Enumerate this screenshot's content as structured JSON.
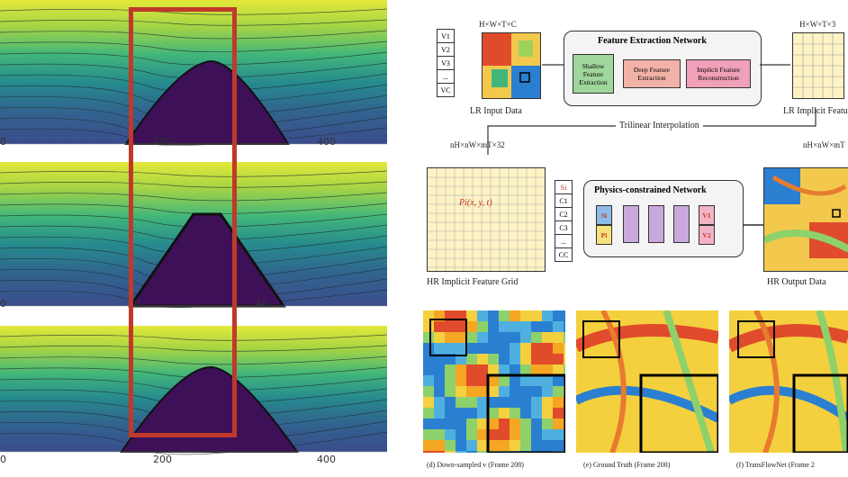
{
  "left_figure": {
    "panels": [
      {
        "ticks": [
          "0",
          "200",
          "400"
        ]
      },
      {
        "ticks": [
          "0",
          "20",
          "40"
        ]
      },
      {
        "ticks": [
          "0",
          "200",
          "400"
        ]
      }
    ],
    "highlight_color": "#c0392b"
  },
  "diagram": {
    "top_left_dim": "H×W×T×C",
    "top_right_dim": "H×W×T×3",
    "input_vars": [
      "V1",
      "V2",
      "V3",
      "...",
      "VC"
    ],
    "lr_input_label": "LR Input Data",
    "fen_title": "Feature Extraction Network",
    "shallow_label": "Shallow Feature Extraction",
    "deep_label": "Deep Feature Extraction",
    "implicit_label": "Implicit Feature Reconstruction",
    "lr_implicit_label": "LR Implicit Feature",
    "trilinear_label": "Trilinear Interpolation",
    "mid_left_dim": "nH×nW×mT×32",
    "mid_right_dim": "nH×nW×mT",
    "point_label": "Pi(x, y, t)",
    "feature_list": [
      "Si",
      "C1",
      "C2",
      "C3",
      "...",
      "CC"
    ],
    "pcn_title": "Physics-constrained Network",
    "pcn_in_s": "Si",
    "pcn_in_p": "Pi",
    "pcn_out_1": "V1",
    "pcn_out_2": "V2",
    "hr_grid_label": "HR Implicit Feature Grid",
    "hr_output_label": "HR Output Data"
  },
  "bottom_captions": [
    "(d) Down-sampled v (Frame 208)",
    "(e) Ground Truth (Frame 208)",
    "(f) TransFlowNet (Frame 2"
  ]
}
